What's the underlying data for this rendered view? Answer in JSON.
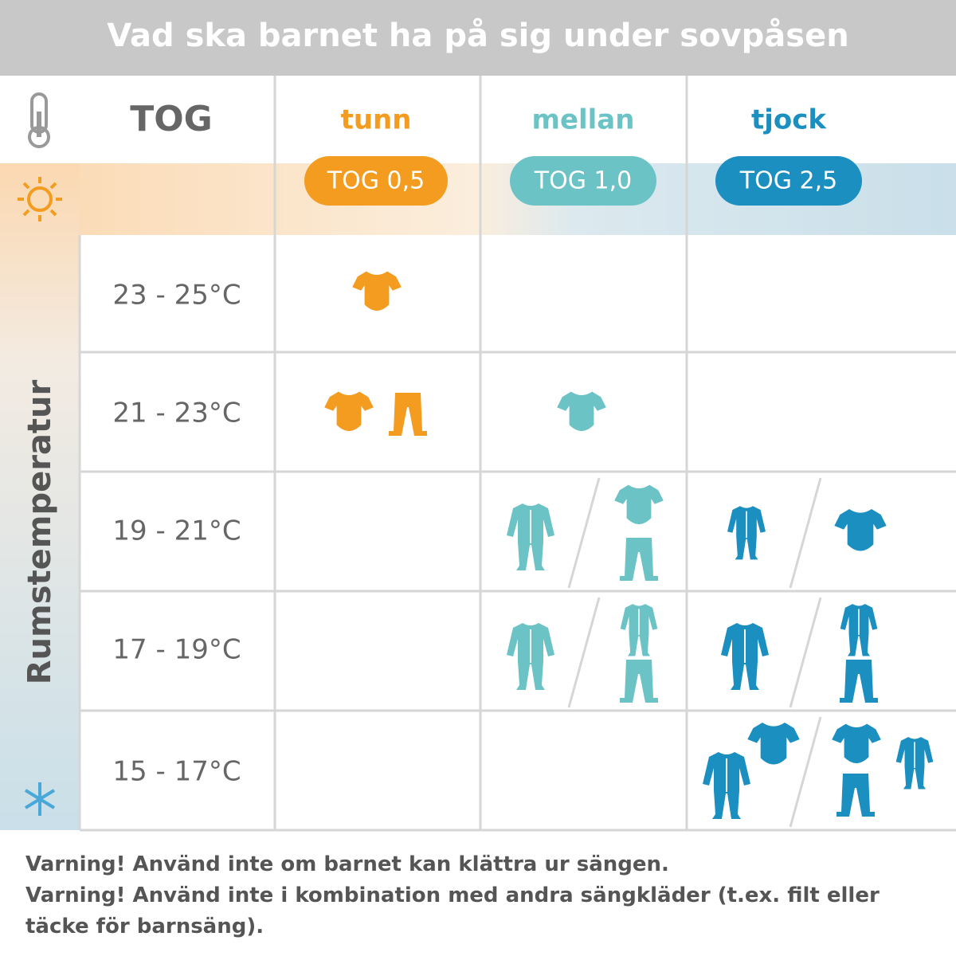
{
  "header": {
    "title": "Vad ska barnet ha på sig under sovpåsen"
  },
  "table": {
    "corner": "TOG",
    "side_label": "Rumstemperatur",
    "columns": [
      {
        "name": "tunn",
        "tog": "TOG 0,5"
      },
      {
        "name": "mellan",
        "tog": "TOG 1,0"
      },
      {
        "name": "tjock",
        "tog": "TOG 2,5"
      }
    ],
    "rows": [
      "23 - 25°C",
      "21 - 23°C",
      "19 - 21°C",
      "17 - 19°C",
      "15 - 17°C"
    ]
  },
  "warnings": [
    "Varning! Använd inte om barnet kan klättra ur sängen.",
    "Varning! Använd inte i kombination med andra sängkläder (t.ex. filt eller täcke för barnsäng)."
  ]
}
